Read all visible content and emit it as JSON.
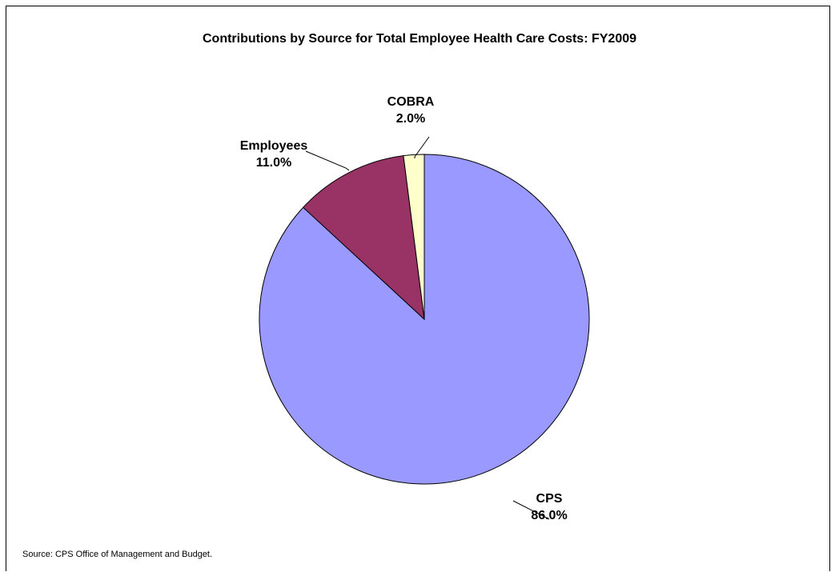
{
  "chart_data": {
    "type": "pie",
    "title": "Contributions by Source for Total Employee Health Care Costs:  FY2009",
    "slices": [
      {
        "name": "CPS",
        "value": 86.0,
        "label": "86.0%",
        "color": "#9999ff"
      },
      {
        "name": "Employees",
        "value": 11.0,
        "label": "11.0%",
        "color": "#993366"
      },
      {
        "name": "COBRA",
        "value": 2.0,
        "label": "2.0%",
        "color": "#ffffcc"
      }
    ],
    "legend": "none",
    "source_note": "Source: CPS Office of Management and Budget."
  }
}
